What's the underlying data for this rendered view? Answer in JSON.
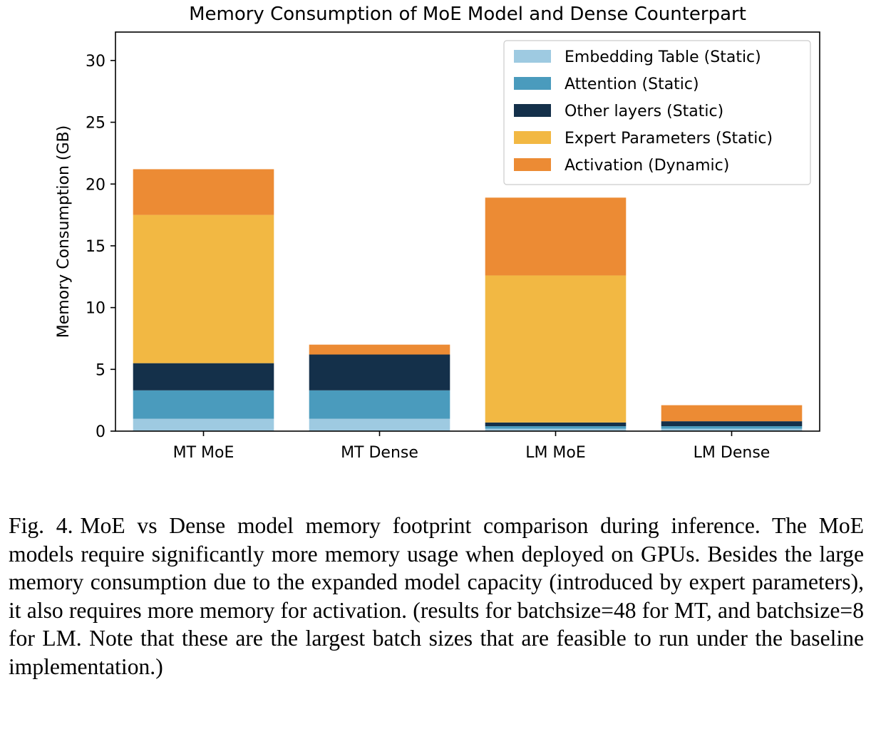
{
  "chart_data": {
    "type": "bar",
    "stacked": true,
    "title": "Memory Consumption of MoE Model and Dense Counterpart",
    "xlabel": "",
    "ylabel": "Memory Consumption (GB)",
    "ylim": [
      0,
      32.3
    ],
    "yticks": [
      0,
      5,
      10,
      15,
      20,
      25,
      30
    ],
    "grid": false,
    "legend_position": "top-right",
    "categories": [
      "MT MoE",
      "MT Dense",
      "LM MoE",
      "LM Dense"
    ],
    "series": [
      {
        "name": "Embedding Table (Static)",
        "color": "#9ecae1",
        "values": [
          1.0,
          1.0,
          0.2,
          0.2
        ]
      },
      {
        "name": "Attention (Static)",
        "color": "#4a9bbd",
        "values": [
          2.3,
          2.3,
          0.2,
          0.2
        ]
      },
      {
        "name": "Other layers (Static)",
        "color": "#14304a",
        "values": [
          2.2,
          2.9,
          0.3,
          0.4
        ]
      },
      {
        "name": "Expert Parameters (Static)",
        "color": "#f2b843",
        "values": [
          12.0,
          0.0,
          11.9,
          0.0
        ]
      },
      {
        "name": "Activation (Dynamic)",
        "color": "#ec8b34",
        "values": [
          3.7,
          0.8,
          6.3,
          1.3
        ]
      }
    ]
  },
  "caption": {
    "label": "Fig. 4.",
    "text": "MoE vs Dense model memory footprint comparison during inference. The MoE models require significantly more memory usage when deployed on GPUs. Besides the large memory consumption due to the expanded model capacity (introduced by expert parameters), it also requires more memory for activation. (results for batchsize=48 for MT, and batchsize=8 for LM. Note that these are the largest batch sizes that are feasible to run under the baseline implementation.)"
  }
}
